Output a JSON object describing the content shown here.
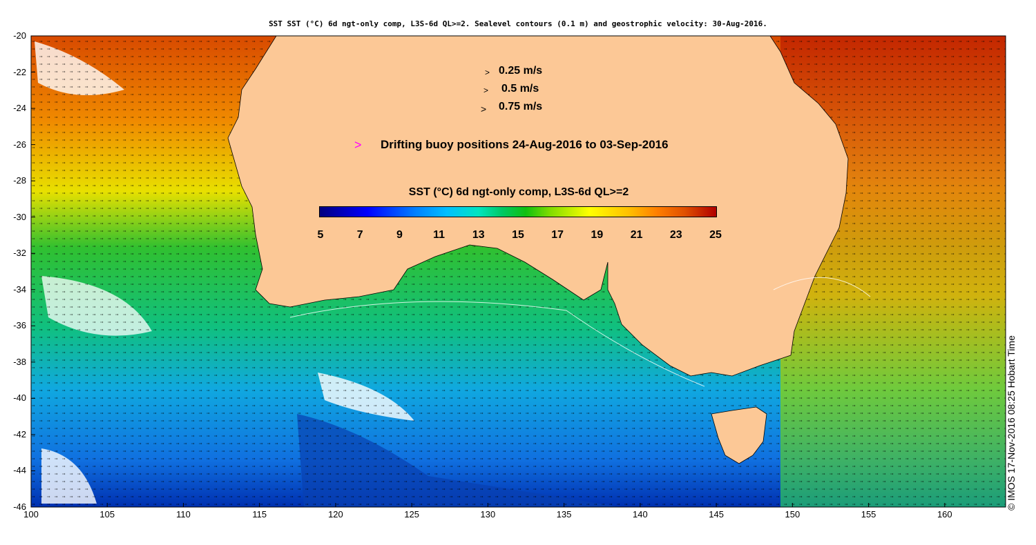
{
  "title": "SST SST (°C) 6d ngt-only comp, L3S-6d QL>=2. Sealevel contours (0.1 m) and geostrophic velocity: 30-Aug-2016.",
  "x_ticks": [
    "100",
    "105",
    "110",
    "115",
    "120",
    "125",
    "130",
    "135",
    "140",
    "145",
    "150",
    "155",
    "160"
  ],
  "y_ticks": [
    "-20",
    "-22",
    "-24",
    "-26",
    "-28",
    "-30",
    "-32",
    "-34",
    "-36",
    "-38",
    "-40",
    "-42",
    "-44",
    "-46"
  ],
  "x_range": [
    100,
    164
  ],
  "y_range": [
    -46,
    -20
  ],
  "velocity_legend": [
    {
      "label": "0.25 m/s",
      "arrow": ">"
    },
    {
      "label": "0.5 m/s",
      "arrow": ">"
    },
    {
      "label": "0.75 m/s",
      "arrow": ">"
    }
  ],
  "buoy_legend": {
    "arrow": ">",
    "label": "Drifting buoy positions 24-Aug-2016 to 03-Sep-2016",
    "color": "#ff00ff"
  },
  "colorbar": {
    "title": "SST (°C) 6d ngt-only comp, L3S-6d QL>=2",
    "ticks": [
      "5",
      "7",
      "9",
      "11",
      "13",
      "15",
      "17",
      "19",
      "21",
      "23",
      "25"
    ],
    "range": [
      5,
      25
    ]
  },
  "credit": "© IMOS 17-Nov-2016 08:25 Hobart Time",
  "colors": {
    "land": "#fcc896",
    "warm": "#e06010",
    "cool": "#1060d0"
  }
}
